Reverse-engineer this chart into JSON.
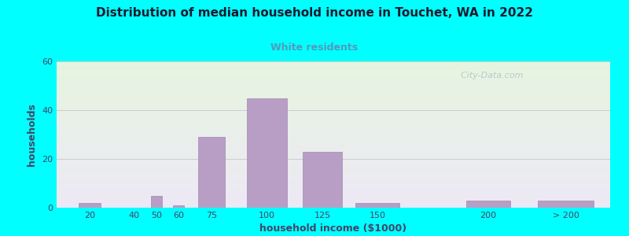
{
  "title": "Distribution of median household income in Touchet, WA in 2022",
  "subtitle": "White residents",
  "xlabel": "household income ($1000)",
  "ylabel": "households",
  "background_outer": "#00FFFF",
  "background_inner_top": "#e5f5df",
  "background_inner_bottom": "#ede8f5",
  "bar_color": "#b89ec4",
  "bar_edge_color": "#a08ab4",
  "title_color": "#1a1a2e",
  "subtitle_color": "#5599bb",
  "axis_label_color": "#444466",
  "tick_label_color": "#444466",
  "grid_color": "#cccccc",
  "watermark": "  City-Data.com",
  "watermark_color": "#aabbcc",
  "categories": [
    "20",
    "40",
    "50",
    "60",
    "75",
    "100",
    "125",
    "150",
    "200",
    "> 200"
  ],
  "x_positions": [
    20,
    40,
    50,
    60,
    75,
    100,
    125,
    150,
    200,
    235
  ],
  "bar_widths": [
    10,
    8,
    5,
    5,
    12,
    18,
    18,
    20,
    20,
    25
  ],
  "values": [
    2,
    0,
    5,
    1,
    29,
    45,
    23,
    2,
    3,
    3
  ],
  "xlim": [
    5,
    255
  ],
  "ylim": [
    0,
    60
  ],
  "yticks": [
    0,
    20,
    40,
    60
  ]
}
